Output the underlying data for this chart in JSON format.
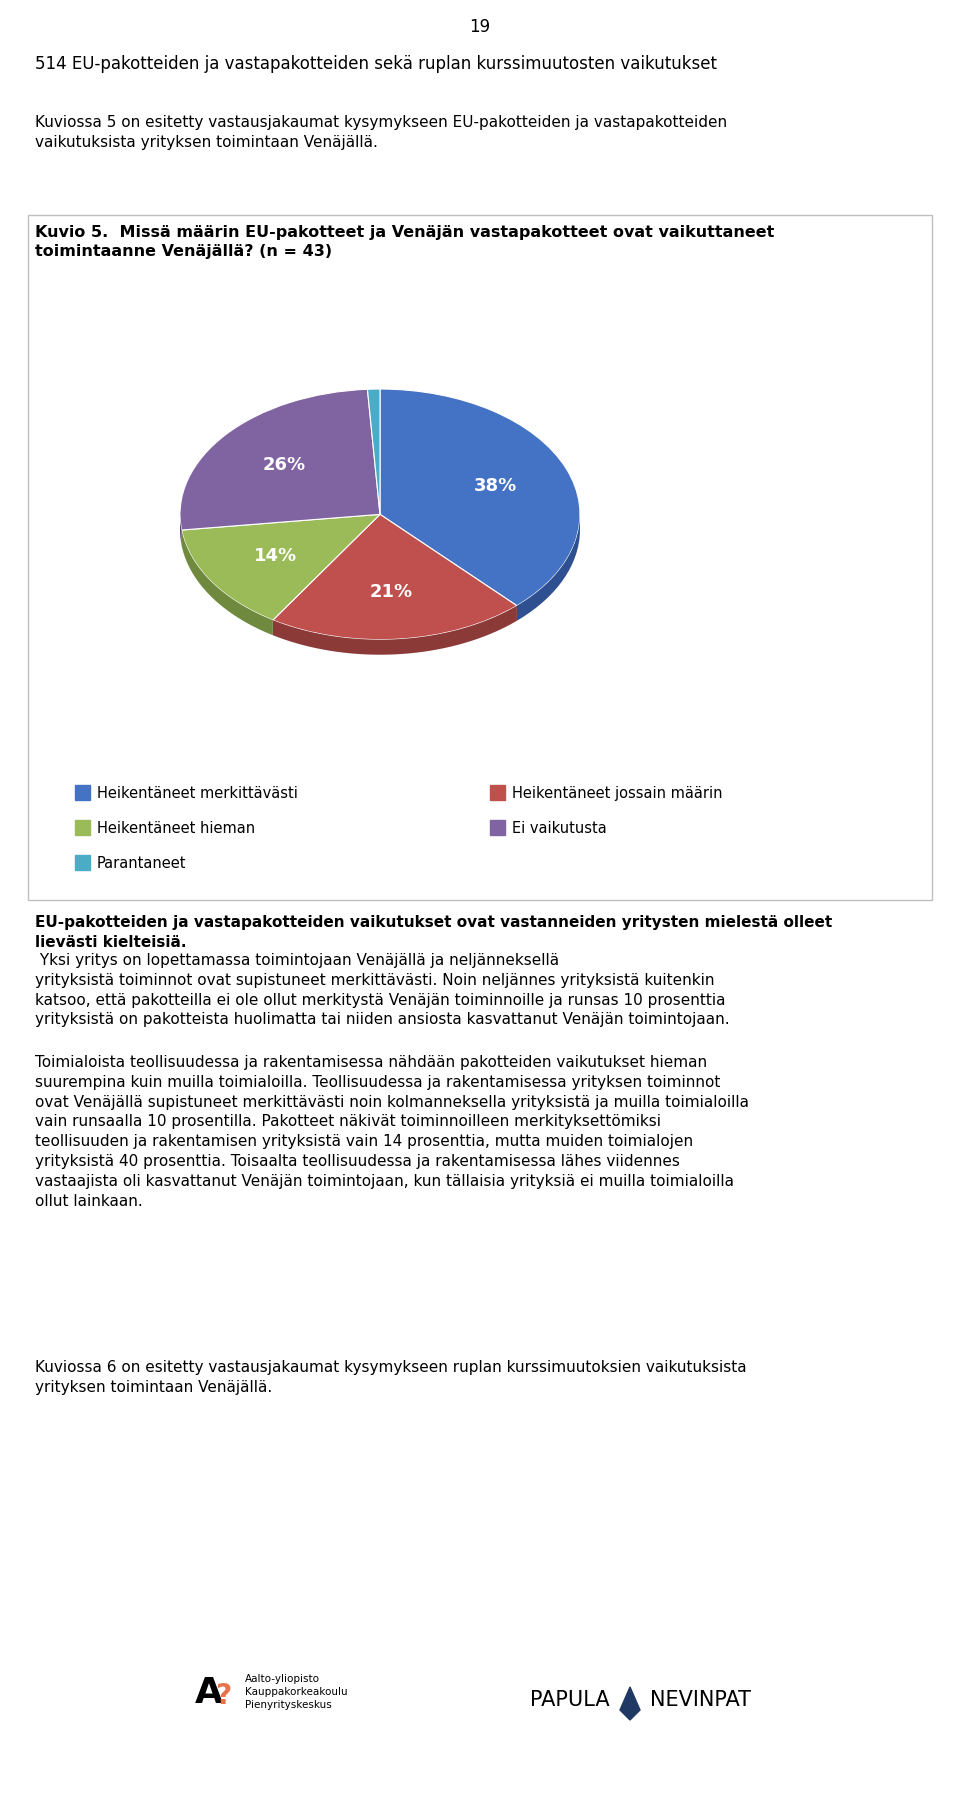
{
  "page_number": "19",
  "header_line": "514 EU-pakotteiden ja vastapakotteiden sekä ruplan kurssimuutosten vaikutukset",
  "para1": "Kuviossa 5 on esitetty vastausjakaumat kysymykseen EU-pakotteiden ja vastapakotteiden\nvaikutuksista yrityksen toimintaan Venäjällä.",
  "kuvio_title_normal": "Kuvio 5. ",
  "kuvio_title_bold": "Missä määrin EU-pakotteet ja Venäjän vastapakotteet ovat vaikuttaneet\ntoimintaanne Venäjällä? (n = 43)",
  "pie_values": [
    38,
    21,
    14,
    26,
    1
  ],
  "pie_labels": [
    "38%",
    "21%",
    "14%",
    "26%",
    ""
  ],
  "pie_colors": [
    "#4472C4",
    "#C0504D",
    "#9BBB59",
    "#8064A2",
    "#4BACC6"
  ],
  "pie_colors_dark": [
    "#2F5090",
    "#8B3A38",
    "#6F8A3E",
    "#5C4874",
    "#357F8F"
  ],
  "legend_labels": [
    "Heikentäneet merkittävästi",
    "Heikentäneet jossain määrin",
    "Heikentäneet hieman",
    "Ei vaikutusta",
    "Parantaneet"
  ],
  "legend_colors": [
    "#4472C4",
    "#C0504D",
    "#9BBB59",
    "#8064A2",
    "#4BACC6"
  ],
  "para2_bold": "EU-pakotteiden ja vastapakotteiden vaikutukset ovat vastanneiden yritysten mielestä olleet\nlievästi kielteisiä.",
  "para2_normal": " Yksi yritys on lopettamassa toimintojaan Venäjällä ja neljänneksellä\nyrityksistä toiminnot ovat supistuneet merkittävästi. Noin neljännes yrityksistä kuitenkin\nkatsoo, että pakotteilla ei ole ollut merkitystä Venäjän toiminnoille ja runsas 10 prosenttia\nyrityksistä on pakotteista huolimatta tai niiden ansiosta kasvattanut Venäjän toimintojaan.",
  "para3": "Toimialoista teollisuudessa ja rakentamisessa nähdään pakotteiden vaikutukset hieman\nsuurempina kuin muilla toimialoilla. Teollisuudessa ja rakentamisessa yrityksen toiminnot\novat Venäjällä supistuneet merkittävästi noin kolmanneksella yrityksistä ja muilla toimialoilla\nvain runsaalla 10 prosentilla. Pakotteet näkivät toiminnoilleen merkityksettömiksi\nteollisuuden ja rakentamisen yrityksistä vain 14 prosenttia, mutta muiden toimialojen\nyrityksistä 40 prosenttia. Toisaalta teollisuudessa ja rakentamisessa lähes viidennes\nvastaajista oli kasvattanut Venäjän toimintojaan, kun tällaisia yrityksiä ei muilla toimialoilla\nollut lainkaan.",
  "para4": "Kuviossa 6 on esitetty vastausjakaumat kysymykseen ruplan kurssimuutoksien vaikutuksista\nyrityksen toimintaan Venäjällä.",
  "background_color": "#FFFFFF",
  "text_color": "#000000",
  "chart_border_color": "#BFBFBF",
  "fig_width": 9.6,
  "fig_height": 17.95,
  "dpi": 100
}
